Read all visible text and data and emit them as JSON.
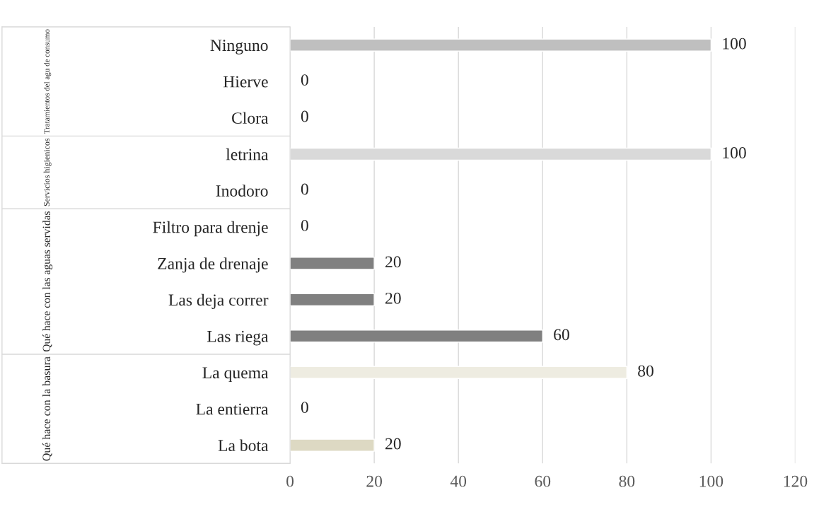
{
  "chart_data": {
    "type": "bar",
    "orientation": "horizontal",
    "categories": [
      "Ninguno",
      "Hierve",
      "Clora",
      "letrina",
      "Inodoro",
      "Filtro para drenje",
      "Zanja de drenaje",
      "Las deja correr",
      "Las riega",
      "La quema",
      "La entierra",
      "La bota"
    ],
    "series": [
      {
        "color": "#bfbfbf",
        "values": [
          100,
          0,
          0,
          null,
          null,
          null,
          null,
          null,
          null,
          null,
          null,
          null
        ]
      },
      {
        "color": "#d9d9d9",
        "values": [
          null,
          null,
          null,
          100,
          0,
          null,
          null,
          null,
          null,
          null,
          null,
          null
        ]
      },
      {
        "color": "#808080",
        "values": [
          null,
          null,
          null,
          null,
          null,
          0,
          20,
          20,
          60,
          null,
          null,
          null
        ]
      },
      {
        "colors": [
          null,
          null,
          null,
          null,
          null,
          null,
          null,
          null,
          null,
          "#eeece1",
          "#eeece1",
          "#ddd9c3"
        ],
        "values": [
          null,
          null,
          null,
          null,
          null,
          null,
          null,
          null,
          null,
          80,
          0,
          20
        ]
      }
    ],
    "annotations": [
      "Tratamientos del agu de consumo",
      "Servicios higienicos",
      "Qué hace con las aguas servidas",
      "Qué hace con la basura"
    ],
    "xlim": [
      0,
      120
    ],
    "xticks": [
      0,
      20,
      40,
      60,
      80,
      100,
      120
    ],
    "grid": "x",
    "data_labels": true
  }
}
